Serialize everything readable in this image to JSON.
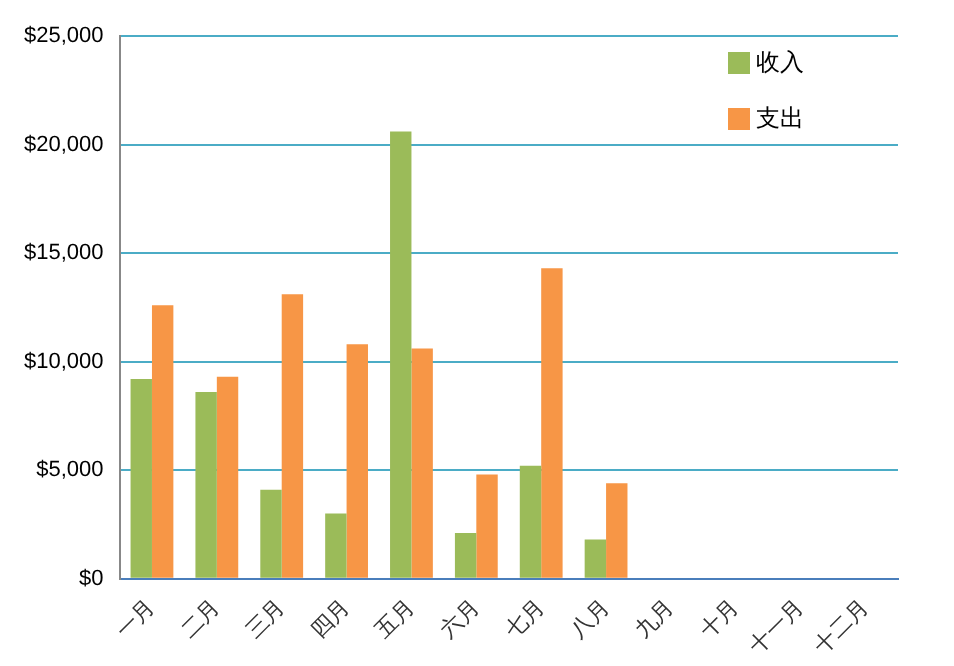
{
  "chart_data": {
    "type": "bar",
    "categories": [
      "一月",
      "二月",
      "三月",
      "四月",
      "五月",
      "六月",
      "七月",
      "八月",
      "九月",
      "十月",
      "十一月",
      "十二月"
    ],
    "series": [
      {
        "name": "收入",
        "color": "#9bbb59",
        "values": [
          9200,
          8600,
          4100,
          3000,
          20600,
          2100,
          5200,
          1800,
          null,
          null,
          null,
          null
        ]
      },
      {
        "name": "支出",
        "color": "#f79646",
        "values": [
          12600,
          9300,
          13100,
          10800,
          10600,
          4800,
          14300,
          4400,
          null,
          null,
          null,
          null
        ]
      }
    ],
    "ylim": [
      0,
      25000
    ],
    "yticks": [
      {
        "value": 0,
        "label": "$0"
      },
      {
        "value": 5000,
        "label": "$5,000"
      },
      {
        "value": 10000,
        "label": "$10,000"
      },
      {
        "value": 15000,
        "label": "$15,000"
      },
      {
        "value": 20000,
        "label": "$20,000"
      },
      {
        "value": 25000,
        "label": "$25,000"
      }
    ],
    "grid": "y",
    "legend": "top right"
  }
}
